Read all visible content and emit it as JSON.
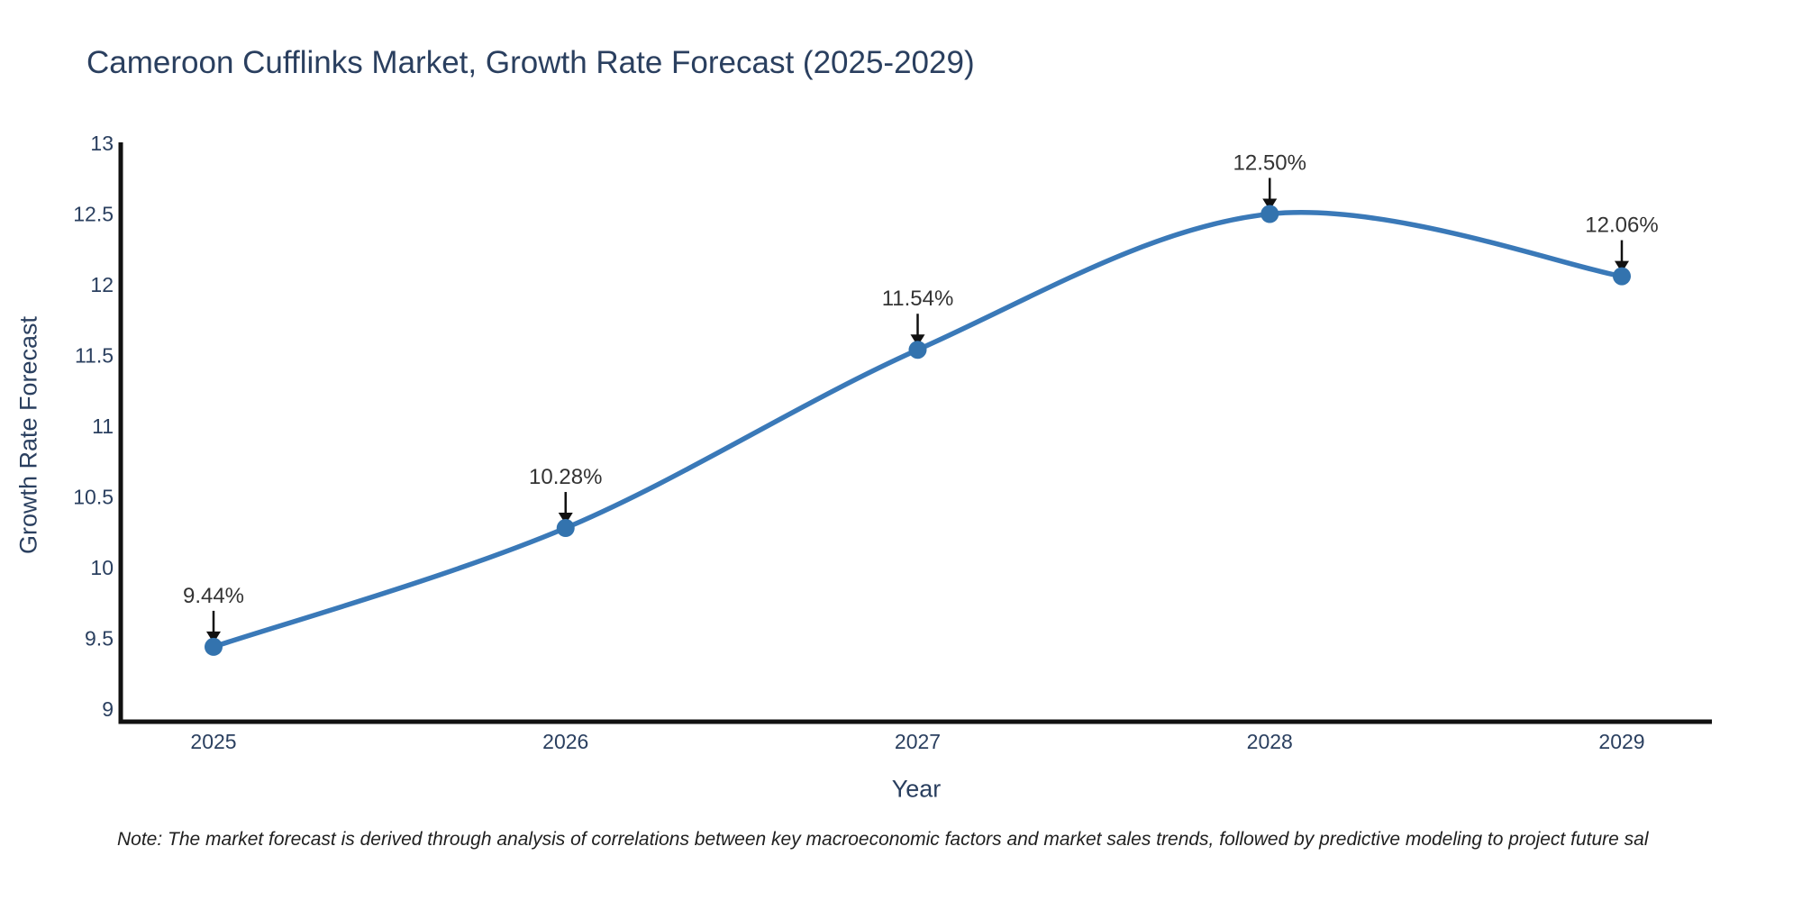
{
  "title": "Cameroon Cufflinks Market, Growth Rate Forecast (2025-2029)",
  "note": "Note: The market forecast is derived through analysis of correlations between key macroeconomic factors and market sales trends, followed by predictive modeling to project future sal",
  "chart_data": {
    "type": "line",
    "title": "Cameroon Cufflinks Market, Growth Rate Forecast (2025-2029)",
    "xlabel": "Year",
    "ylabel": "Growth Rate Forecast",
    "x": [
      2025,
      2026,
      2027,
      2028,
      2029
    ],
    "series": [
      {
        "name": "Growth Rate Forecast",
        "values": [
          9.44,
          10.28,
          11.54,
          12.5,
          12.06
        ]
      }
    ],
    "point_labels": [
      "9.44%",
      "10.28%",
      "11.54%",
      "12.50%",
      "12.06%"
    ],
    "x_tick_labels": [
      "2025",
      "2026",
      "2027",
      "2028",
      "2029"
    ],
    "y_ticks": [
      9,
      9.5,
      10,
      10.5,
      11,
      11.5,
      12,
      12.5,
      13
    ],
    "ylim": [
      9,
      13
    ],
    "grid": false,
    "legend_position": "none",
    "line_shape": "spline",
    "annotation_arrows": true,
    "colors": {
      "line": "#3a79b8",
      "marker": "#3373ae",
      "axis": "#111111",
      "tick_labels": "#2a3f5f",
      "annotation_text": "#333333",
      "arrow": "#111111",
      "background": "#ffffff"
    }
  }
}
